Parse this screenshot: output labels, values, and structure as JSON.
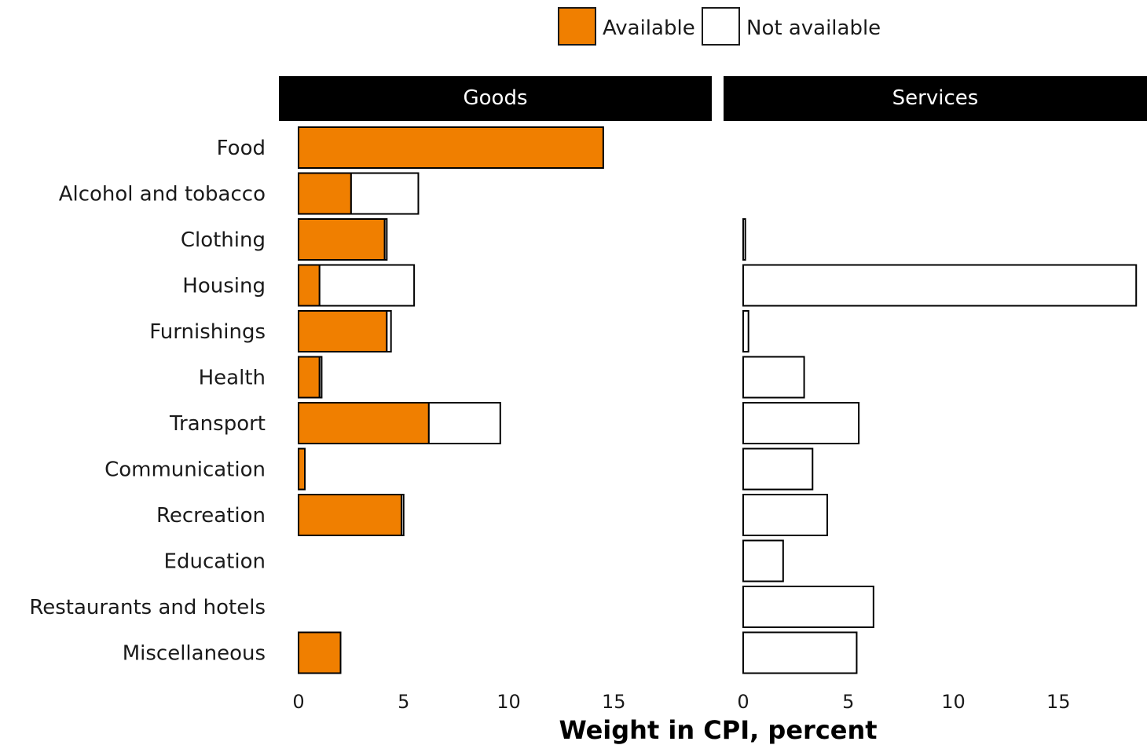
{
  "chart_data": {
    "type": "bar",
    "orientation": "horizontal",
    "stacked": true,
    "xlabel": "Weight in CPI, percent",
    "xlim": [
      0,
      18.7
    ],
    "xticks": [
      0,
      5,
      10,
      15
    ],
    "legend": {
      "placement": "top",
      "items": [
        {
          "name": "Available",
          "color": "#f07f00"
        },
        {
          "name": "Not available",
          "color": "#ffffff"
        }
      ]
    },
    "categories": [
      "Food",
      "Alcohol and tobacco",
      "Clothing",
      "Housing",
      "Furnishings",
      "Health",
      "Transport",
      "Communication",
      "Recreation",
      "Education",
      "Restaurants and hotels",
      "Miscellaneous"
    ],
    "panels": [
      {
        "title": "Goods",
        "series": [
          {
            "name": "Available",
            "values": [
              14.5,
              2.5,
              4.1,
              1.0,
              4.2,
              1.0,
              6.2,
              0.3,
              4.9,
              0,
              0,
              2.0
            ]
          },
          {
            "name": "Not available",
            "values": [
              0,
              3.2,
              0.1,
              4.5,
              0.2,
              0.1,
              3.4,
              0,
              0.1,
              0,
              0,
              0
            ]
          }
        ]
      },
      {
        "title": "Services",
        "series": [
          {
            "name": "Available",
            "values": [
              0,
              0,
              0,
              0,
              0,
              0,
              0,
              0,
              0,
              0,
              0,
              0
            ]
          },
          {
            "name": "Not available",
            "values": [
              0,
              0,
              0.1,
              18.7,
              0.25,
              2.9,
              5.5,
              3.3,
              4.0,
              1.9,
              6.2,
              5.4
            ]
          }
        ]
      }
    ],
    "grid": false
  }
}
